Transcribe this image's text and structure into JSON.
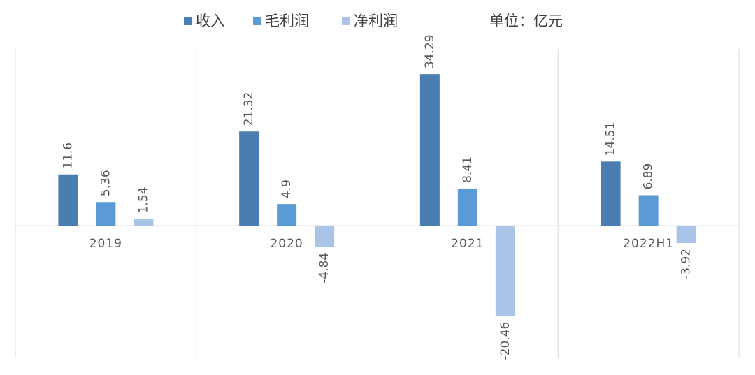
{
  "chart_data": {
    "type": "bar",
    "categories": [
      "2019",
      "2020",
      "2021",
      "2022H1"
    ],
    "series": [
      {
        "name": "收入",
        "color": "#4a7eb0",
        "values": [
          11.6,
          21.32,
          34.29,
          14.51
        ]
      },
      {
        "name": "毛利润",
        "color": "#5b9bd5",
        "values": [
          5.36,
          4.9,
          8.41,
          6.89
        ]
      },
      {
        "name": "净利润",
        "color": "#a9c4e6",
        "values": [
          1.54,
          -4.84,
          -20.46,
          -3.92
        ]
      }
    ],
    "annotation": "单位：亿元",
    "ylim": [
      -30,
      40
    ]
  }
}
